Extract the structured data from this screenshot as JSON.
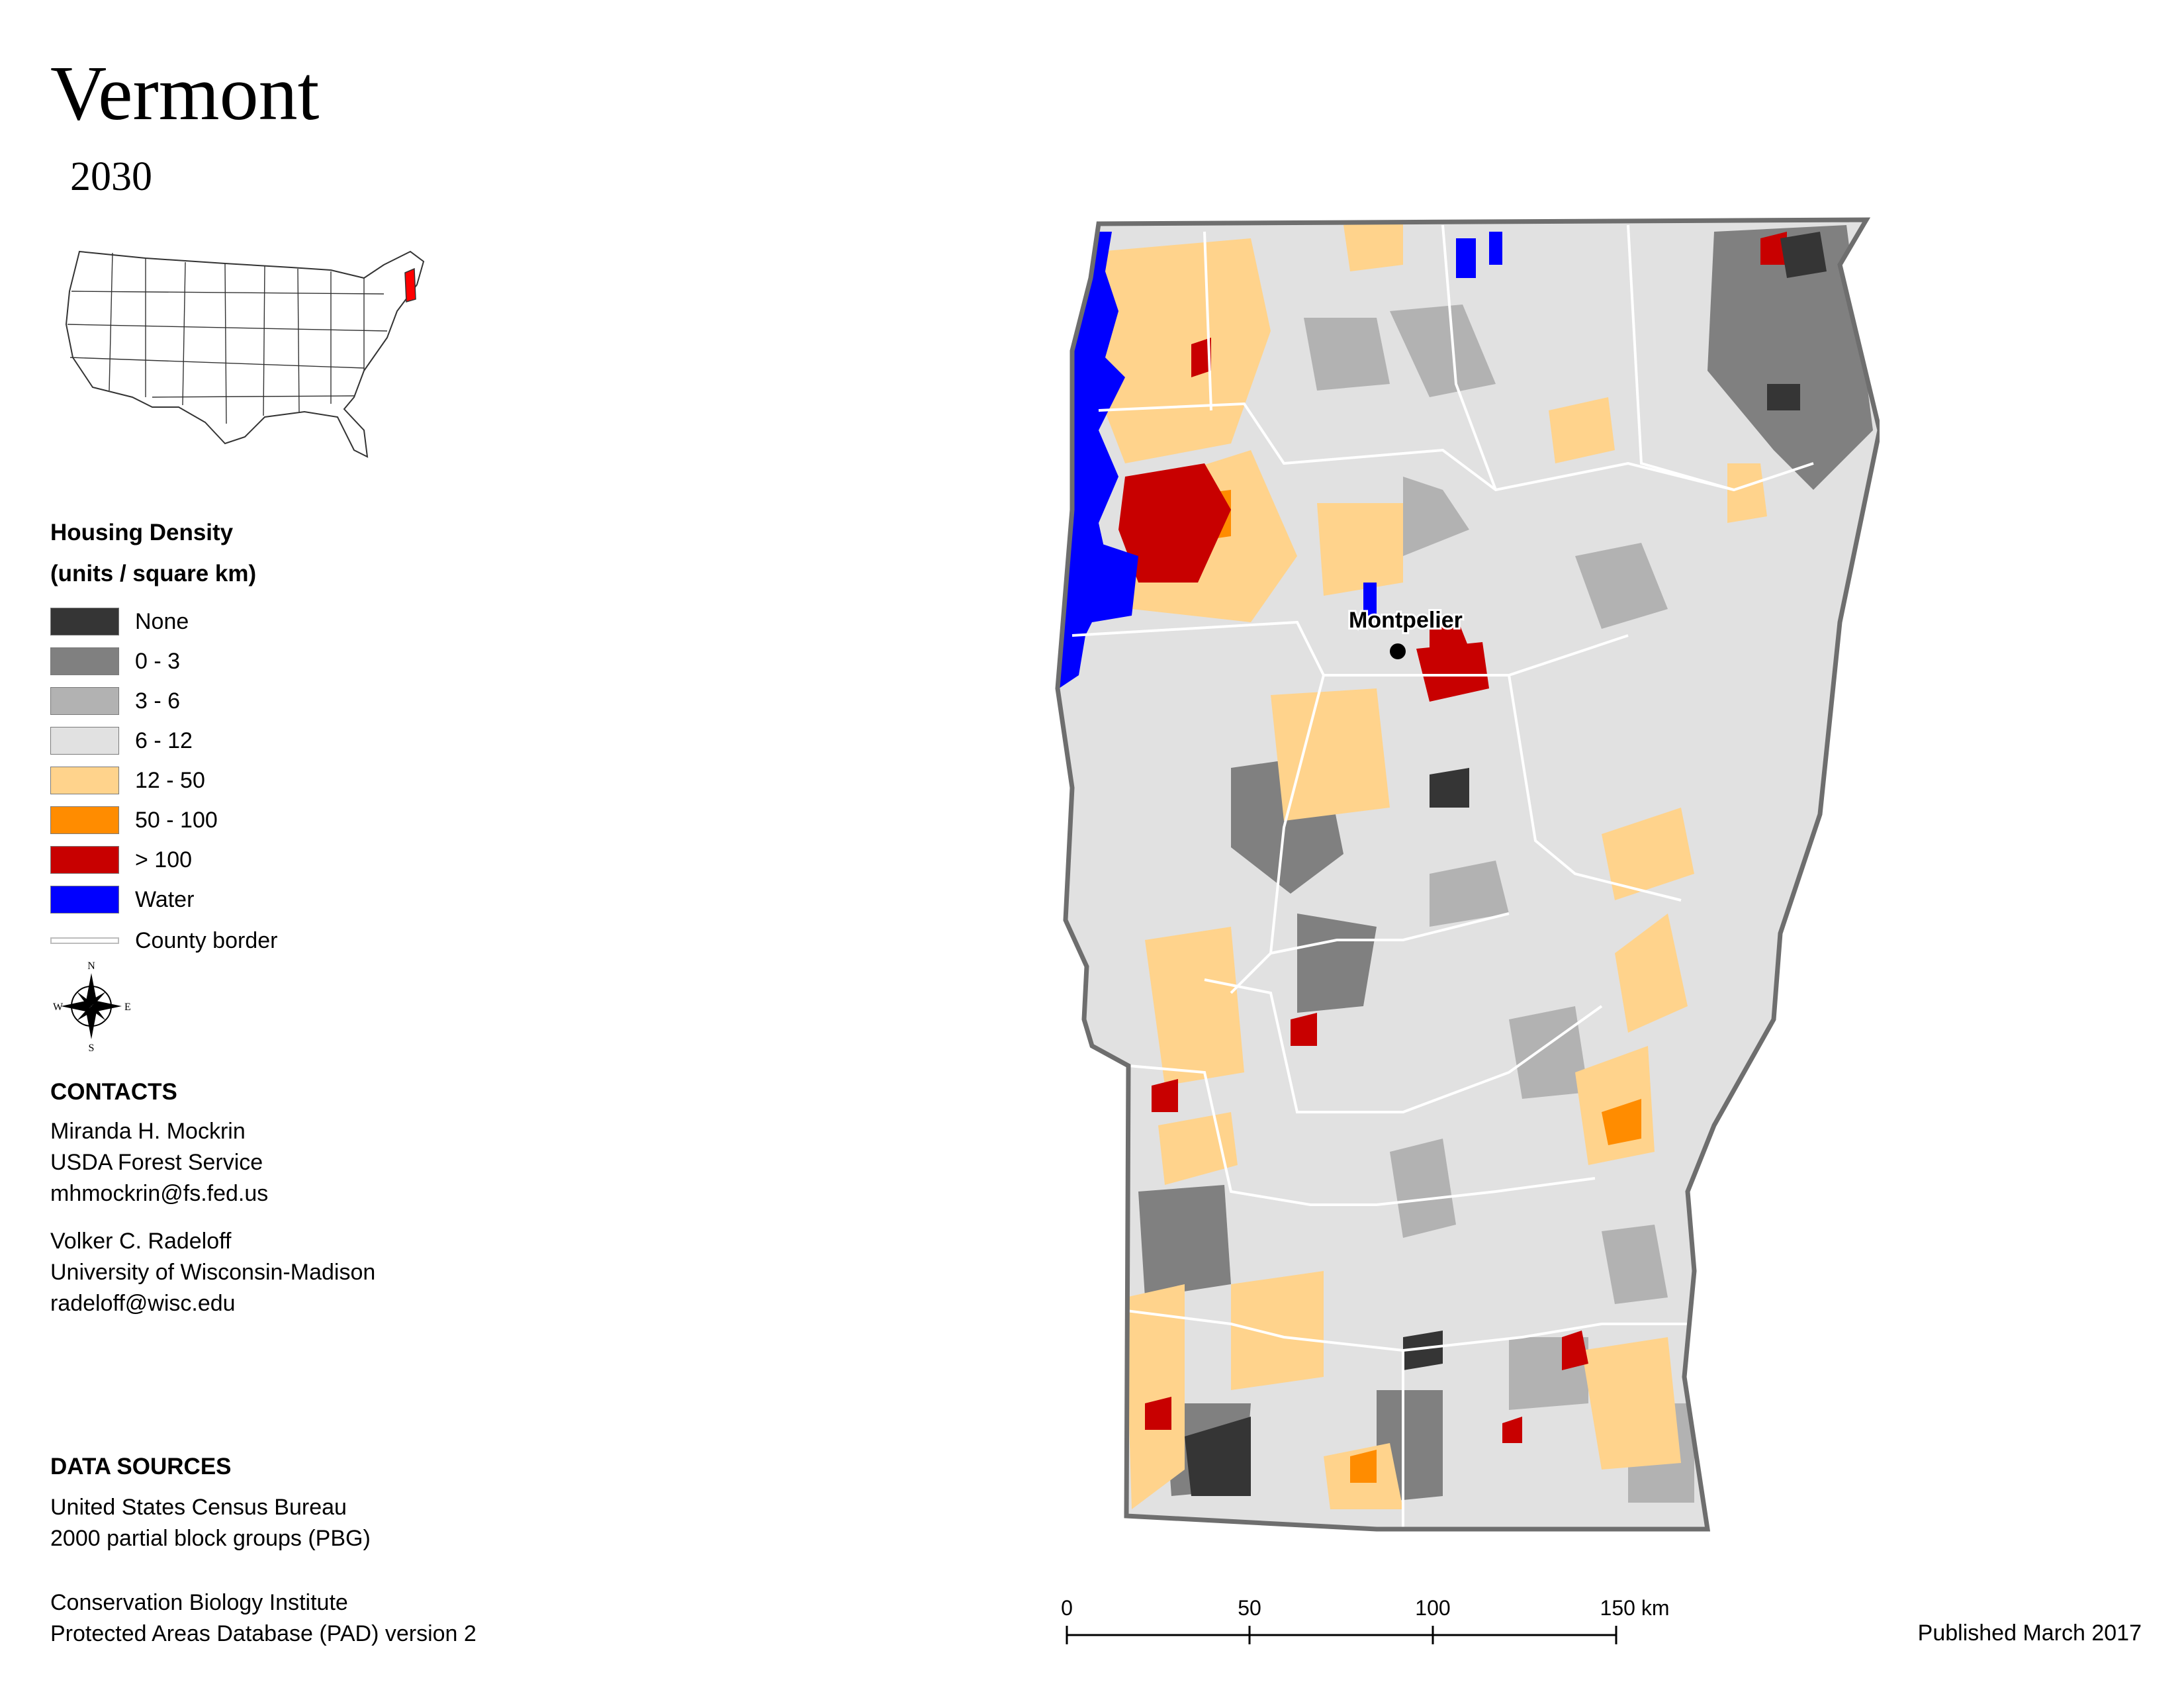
{
  "title": "Vermont",
  "subtitle": "2030",
  "legend": {
    "title_line1": "Housing Density",
    "title_line2": "(units / square km)",
    "items": [
      {
        "label": "None",
        "color": "#353535"
      },
      {
        "label": "0 - 3",
        "color": "#808080"
      },
      {
        "label": "3 - 6",
        "color": "#b2b2b2"
      },
      {
        "label": "6 - 12",
        "color": "#e1e1e1"
      },
      {
        "label": "12 - 50",
        "color": "#ffd38c"
      },
      {
        "label": "50 - 100",
        "color": "#ff8c00"
      },
      {
        "label": "> 100",
        "color": "#c80000"
      },
      {
        "label": "Water",
        "color": "#0000ff"
      }
    ],
    "border_label": "County border"
  },
  "compass": {
    "n": "N",
    "s": "S",
    "e": "E",
    "w": "W"
  },
  "map_label": "Montpelier",
  "contacts": {
    "heading": "CONTACTS",
    "people": [
      {
        "name": "Miranda H. Mockrin",
        "org": "USDA Forest Service",
        "email": "mhmockrin@fs.fed.us"
      },
      {
        "name": "Volker C. Radeloff",
        "org": "University of Wisconsin-Madison",
        "email": "radeloff@wisc.edu"
      }
    ]
  },
  "data_sources": {
    "heading": "DATA SOURCES",
    "lines": [
      "United States Census Bureau",
      "2000 partial block groups (PBG)",
      "Conservation Biology Institute",
      "Protected Areas Database (PAD) version 2"
    ]
  },
  "scale": {
    "ticks": [
      "0",
      "50",
      "100",
      "150 km"
    ]
  },
  "published": "Published March 2017"
}
